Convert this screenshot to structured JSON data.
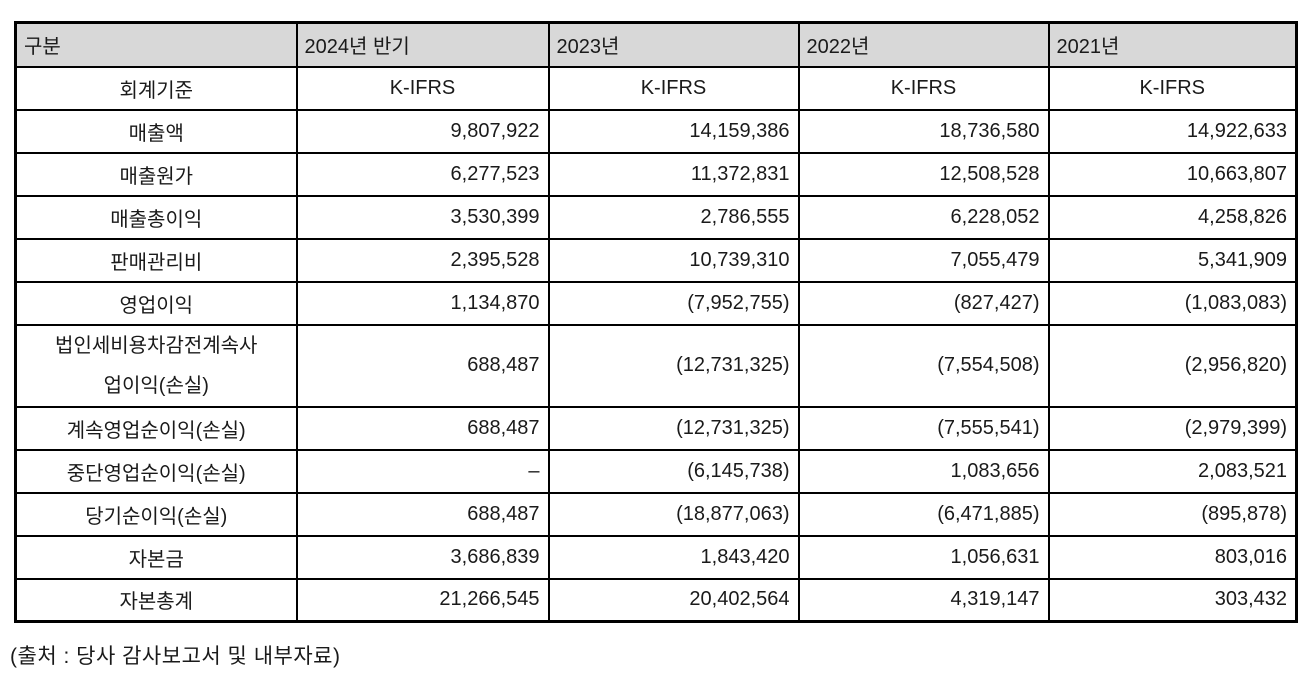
{
  "table": {
    "columns": [
      "구분",
      "2024년 반기",
      "2023년",
      "2022년",
      "2021년"
    ],
    "rows": [
      {
        "label": "회계기준",
        "values": [
          "K-IFRS",
          "K-IFRS",
          "K-IFRS",
          "K-IFRS"
        ]
      },
      {
        "label": "매출액",
        "values": [
          "9,807,922",
          "14,159,386",
          "18,736,580",
          "14,922,633"
        ]
      },
      {
        "label": "매출원가",
        "values": [
          "6,277,523",
          "11,372,831",
          "12,508,528",
          "10,663,807"
        ]
      },
      {
        "label": "매출총이익",
        "values": [
          "3,530,399",
          "2,786,555",
          "6,228,052",
          "4,258,826"
        ]
      },
      {
        "label": "판매관리비",
        "values": [
          "2,395,528",
          "10,739,310",
          "7,055,479",
          "5,341,909"
        ]
      },
      {
        "label": "영업이익",
        "values": [
          "1,134,870",
          "(7,952,755)",
          "(827,427)",
          "(1,083,083)"
        ]
      },
      {
        "label": "법인세비용차감전계속사\n업이익(손실)",
        "values": [
          "688,487",
          "(12,731,325)",
          "(7,554,508)",
          "(2,956,820)"
        ]
      },
      {
        "label": "계속영업순이익(손실)",
        "values": [
          "688,487",
          "(12,731,325)",
          "(7,555,541)",
          "(2,979,399)"
        ]
      },
      {
        "label": "중단영업순이익(손실)",
        "values": [
          "–",
          "(6,145,738)",
          "1,083,656",
          "2,083,521"
        ]
      },
      {
        "label": "당기순이익(손실)",
        "values": [
          "688,487",
          "(18,877,063)",
          "(6,471,885)",
          "(895,878)"
        ]
      },
      {
        "label": "자본금",
        "values": [
          "3,686,839",
          "1,843,420",
          "1,056,631",
          "803,016"
        ]
      },
      {
        "label": "자본총계",
        "values": [
          "21,266,545",
          "20,402,564",
          "4,319,147",
          "303,432"
        ]
      }
    ]
  },
  "footer": {
    "source_note": "(출처 : 당사 감사보고서 및 내부자료)"
  },
  "colors": {
    "header_bg": "#d8d8d8",
    "border": "#000000",
    "text": "#1a1a1a",
    "background": "#ffffff"
  }
}
